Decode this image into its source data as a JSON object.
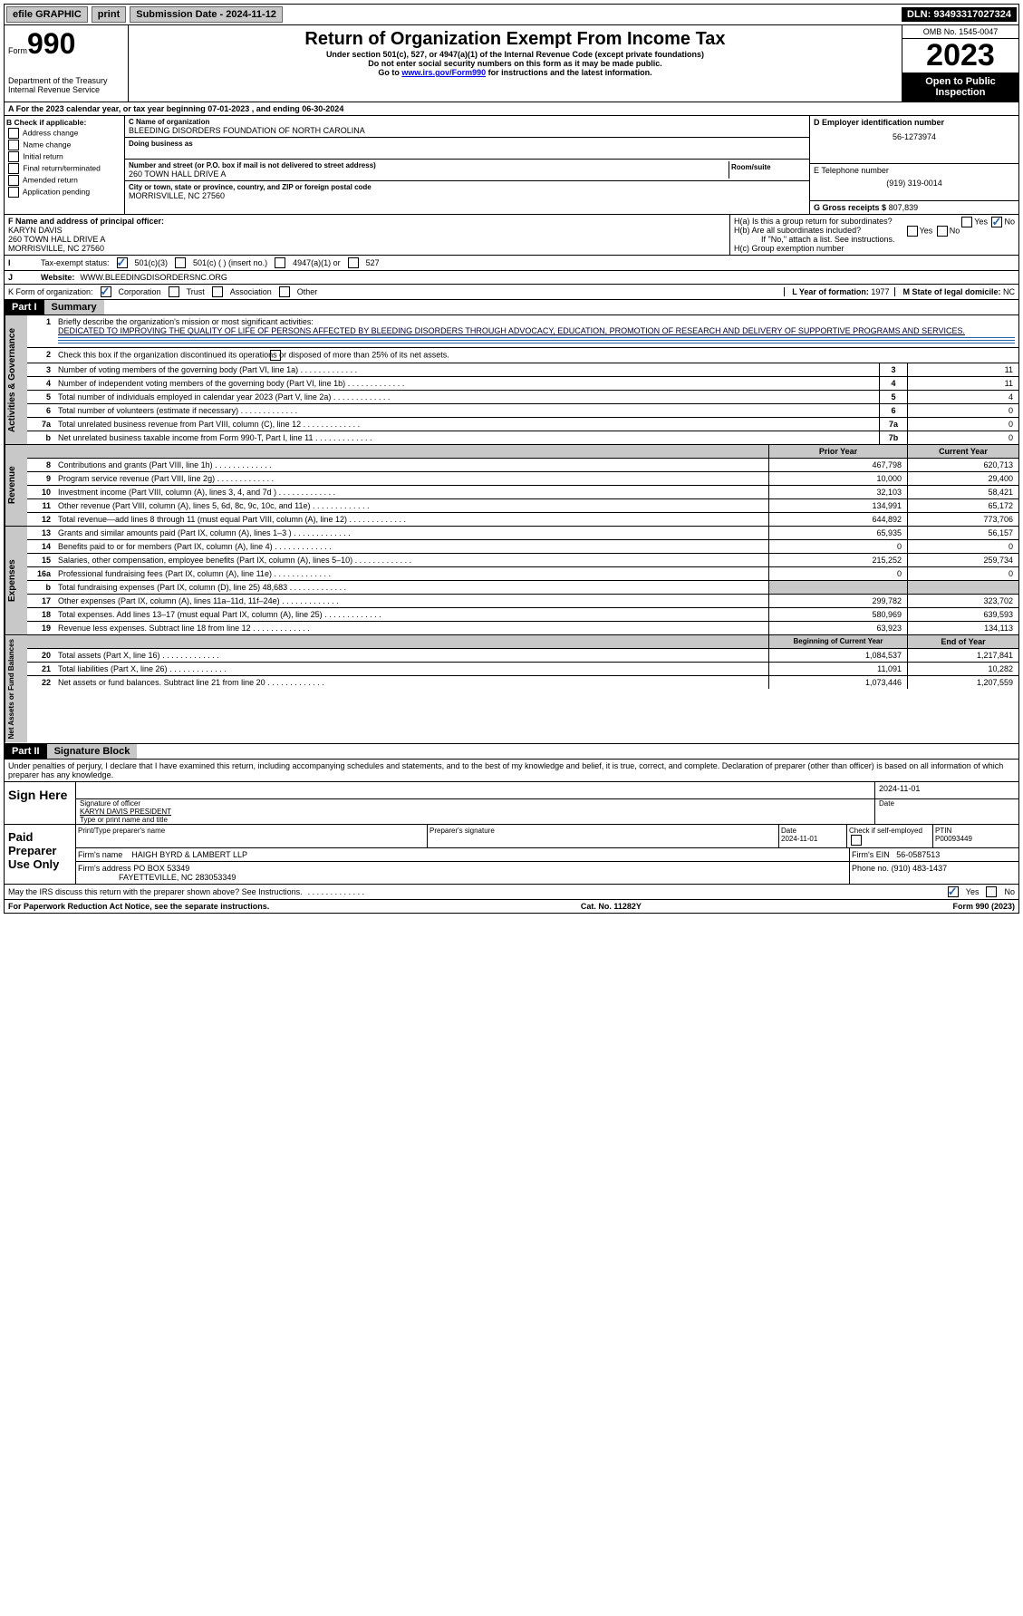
{
  "topbar": {
    "efile": "efile GRAPHIC",
    "print": "print",
    "sub_lbl": "Submission Date - 2024-11-12",
    "dln": "DLN: 93493317027324"
  },
  "header": {
    "form_lbl": "Form",
    "form_num": "990",
    "dept": "Department of the Treasury",
    "irs": "Internal Revenue Service",
    "title": "Return of Organization Exempt From Income Tax",
    "sub1": "Under section 501(c), 527, or 4947(a)(1) of the Internal Revenue Code (except private foundations)",
    "sub2": "Do not enter social security numbers on this form as it may be made public.",
    "goto_pre": "Go to ",
    "goto_link": "www.irs.gov/Form990",
    "goto_post": " for instructions and the latest information.",
    "omb": "OMB No. 1545-0047",
    "year": "2023",
    "inspect": "Open to Public Inspection"
  },
  "A": {
    "text": "A For the 2023 calendar year, or tax year beginning 07-01-2023   , and ending 06-30-2024"
  },
  "B": {
    "label": "B Check if applicable:",
    "items": [
      "Address change",
      "Name change",
      "Initial return",
      "Final return/terminated",
      "Amended return",
      "Application pending"
    ]
  },
  "C": {
    "name_lbl": "C Name of organization",
    "name": "BLEEDING DISORDERS FOUNDATION OF NORTH CAROLINA",
    "dba_lbl": "Doing business as",
    "street_lbl": "Number and street (or P.O. box if mail is not delivered to street address)",
    "room_lbl": "Room/suite",
    "street": "260 TOWN HALL DRIVE A",
    "city_lbl": "City or town, state or province, country, and ZIP or foreign postal code",
    "city": "MORRISVILLE, NC  27560"
  },
  "D": {
    "lbl": "D Employer identification number",
    "val": "56-1273974"
  },
  "E": {
    "lbl": "E Telephone number",
    "val": "(919) 319-0014"
  },
  "G": {
    "lbl": "G Gross receipts $",
    "val": "807,839"
  },
  "F": {
    "lbl": "F  Name and address of principal officer:",
    "name": "KARYN DAVIS",
    "addr1": "260 TOWN HALL DRIVE A",
    "addr2": "MORRISVILLE, NC  27560"
  },
  "H": {
    "a": "H(a)  Is this a group return for subordinates?",
    "b": "H(b)  Are all subordinates included?",
    "note": "If \"No,\" attach a list. See instructions.",
    "c": "H(c)  Group exemption number",
    "yes": "Yes",
    "no": "No"
  },
  "I": {
    "lbl": "Tax-exempt status:",
    "c3": "501(c)(3)",
    "c": "501(c) (  ) (insert no.)",
    "a1": "4947(a)(1) or",
    "s527": "527"
  },
  "J": {
    "lbl": "Website:",
    "val": "WWW.BLEEDINGDISORDERSNC.ORG"
  },
  "K": {
    "lbl": "K Form of organization:",
    "corp": "Corporation",
    "trust": "Trust",
    "assoc": "Association",
    "other": "Other"
  },
  "L": {
    "lbl": "L Year of formation:",
    "val": "1977"
  },
  "M": {
    "lbl": "M State of legal domicile:",
    "val": "NC"
  },
  "part1": {
    "hdr_num": "Part I",
    "hdr_title": "Summary",
    "side_gov": "Activities & Governance",
    "side_rev": "Revenue",
    "side_exp": "Expenses",
    "side_net": "Net Assets or Fund Balances",
    "l1_lbl": "Briefly describe the organization's mission or most significant activities:",
    "l1_val": "DEDICATED TO IMPROVING THE QUALITY OF LIFE OF PERSONS AFFECTED BY BLEEDING DISORDERS THROUGH ADVOCACY, EDUCATION, PROMOTION OF RESEARCH AND DELIVERY OF SUPPORTIVE PROGRAMS AND SERVICES.",
    "l2": "Check this box      if the organization discontinued its operations or disposed of more than 25% of its net assets.",
    "lines_single": [
      {
        "n": "3",
        "t": "Number of voting members of the governing body (Part VI, line 1a)",
        "k": "3",
        "v": "11"
      },
      {
        "n": "4",
        "t": "Number of independent voting members of the governing body (Part VI, line 1b)",
        "k": "4",
        "v": "11"
      },
      {
        "n": "5",
        "t": "Total number of individuals employed in calendar year 2023 (Part V, line 2a)",
        "k": "5",
        "v": "4"
      },
      {
        "n": "6",
        "t": "Total number of volunteers (estimate if necessary)",
        "k": "6",
        "v": "0"
      },
      {
        "n": "7a",
        "t": "Total unrelated business revenue from Part VIII, column (C), line 12",
        "k": "7a",
        "v": "0"
      },
      {
        "n": "b",
        "t": "Net unrelated business taxable income from Form 990-T, Part I, line 11",
        "k": "7b",
        "v": "0"
      }
    ],
    "col_hdr_prior": "Prior Year",
    "col_hdr_curr": "Current Year",
    "rev_lines": [
      {
        "n": "8",
        "t": "Contributions and grants (Part VIII, line 1h)",
        "p": "467,798",
        "c": "620,713"
      },
      {
        "n": "9",
        "t": "Program service revenue (Part VIII, line 2g)",
        "p": "10,000",
        "c": "29,400"
      },
      {
        "n": "10",
        "t": "Investment income (Part VIII, column (A), lines 3, 4, and 7d )",
        "p": "32,103",
        "c": "58,421"
      },
      {
        "n": "11",
        "t": "Other revenue (Part VIII, column (A), lines 5, 6d, 8c, 9c, 10c, and 11e)",
        "p": "134,991",
        "c": "65,172"
      },
      {
        "n": "12",
        "t": "Total revenue—add lines 8 through 11 (must equal Part VIII, column (A), line 12)",
        "p": "644,892",
        "c": "773,706"
      }
    ],
    "exp_lines": [
      {
        "n": "13",
        "t": "Grants and similar amounts paid (Part IX, column (A), lines 1–3 )",
        "p": "65,935",
        "c": "56,157"
      },
      {
        "n": "14",
        "t": "Benefits paid to or for members (Part IX, column (A), line 4)",
        "p": "0",
        "c": "0"
      },
      {
        "n": "15",
        "t": "Salaries, other compensation, employee benefits (Part IX, column (A), lines 5–10)",
        "p": "215,252",
        "c": "259,734"
      },
      {
        "n": "16a",
        "t": "Professional fundraising fees (Part IX, column (A), line 11e)",
        "p": "0",
        "c": "0"
      },
      {
        "n": "b",
        "t": "Total fundraising expenses (Part IX, column (D), line 25) 48,683",
        "p": "",
        "c": "",
        "gray": true
      },
      {
        "n": "17",
        "t": "Other expenses (Part IX, column (A), lines 11a–11d, 11f–24e)",
        "p": "299,782",
        "c": "323,702"
      },
      {
        "n": "18",
        "t": "Total expenses. Add lines 13–17 (must equal Part IX, column (A), line 25)",
        "p": "580,969",
        "c": "639,593"
      },
      {
        "n": "19",
        "t": "Revenue less expenses. Subtract line 18 from line 12",
        "p": "63,923",
        "c": "134,113"
      }
    ],
    "col_hdr_beg": "Beginning of Current Year",
    "col_hdr_end": "End of Year",
    "net_lines": [
      {
        "n": "20",
        "t": "Total assets (Part X, line 16)",
        "p": "1,084,537",
        "c": "1,217,841"
      },
      {
        "n": "21",
        "t": "Total liabilities (Part X, line 26)",
        "p": "11,091",
        "c": "10,282"
      },
      {
        "n": "22",
        "t": "Net assets or fund balances. Subtract line 21 from line 20",
        "p": "1,073,446",
        "c": "1,207,559"
      }
    ]
  },
  "part2": {
    "hdr_num": "Part II",
    "hdr_title": "Signature Block",
    "perjury": "Under penalties of perjury, I declare that I have examined this return, including accompanying schedules and statements, and to the best of my knowledge and belief, it is true, correct, and complete. Declaration of preparer (other than officer) is based on all information of which preparer has any knowledge.",
    "sign_here": "Sign Here",
    "sig_officer_lbl": "Signature of officer",
    "sig_date": "2024-11-01",
    "sig_date_lbl": "Date",
    "officer_name": "KARYN DAVIS PRESIDENT",
    "officer_name_lbl": "Type or print name and title",
    "paid": "Paid Preparer Use Only",
    "prep_hdrs": [
      "Print/Type preparer's name",
      "Preparer's signature",
      "Date",
      "Check      if self-employed",
      "PTIN"
    ],
    "prep_date": "2024-11-01",
    "ptin": "P00093449",
    "firm_lbl": "Firm's name",
    "firm_name": "HAIGH BYRD & LAMBERT LLP",
    "firm_ein_lbl": "Firm's EIN",
    "firm_ein": "56-0587513",
    "firm_addr_lbl": "Firm's address",
    "firm_addr1": "PO BOX 53349",
    "firm_addr2": "FAYETTEVILLE, NC  283053349",
    "phone_lbl": "Phone no.",
    "phone": "(910) 483-1437",
    "discuss": "May the IRS discuss this return with the preparer shown above? See Instructions.",
    "yes": "Yes",
    "no": "No"
  },
  "footer": {
    "left": "For Paperwork Reduction Act Notice, see the separate instructions.",
    "mid": "Cat. No. 11282Y",
    "right": "Form 990 (2023)"
  }
}
